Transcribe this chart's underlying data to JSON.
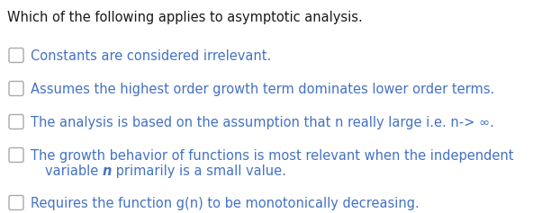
{
  "background_color": "#ffffff",
  "title": "Which of the following applies to asymptotic analysis.",
  "title_color": "#1a1a1a",
  "title_fontsize": 10.5,
  "options": [
    {
      "lines": [
        "Constants are considered irrelevant."
      ],
      "has_italic_n": false,
      "color": "#4472C4"
    },
    {
      "lines": [
        "Assumes the highest order growth term dominates lower order terms."
      ],
      "has_italic_n": false,
      "color": "#4472C4"
    },
    {
      "lines": [
        "The analysis is based on the assumption that n really large i.e. n-> ∞."
      ],
      "has_italic_n": false,
      "color": "#4472C4"
    },
    {
      "lines": [
        "The growth behavior of functions is most relevant when the independent",
        "variable _n_ primarily is a small value."
      ],
      "has_italic_n": true,
      "color": "#4472C4"
    },
    {
      "lines": [
        "Requires the function g(n) to be monotonically decreasing."
      ],
      "has_italic_n": false,
      "color": "#4472C4"
    }
  ],
  "checkbox_color": "#aaaaaa",
  "option_fontsize": 10.5,
  "figsize": [
    6.12,
    2.37
  ],
  "dpi": 100
}
